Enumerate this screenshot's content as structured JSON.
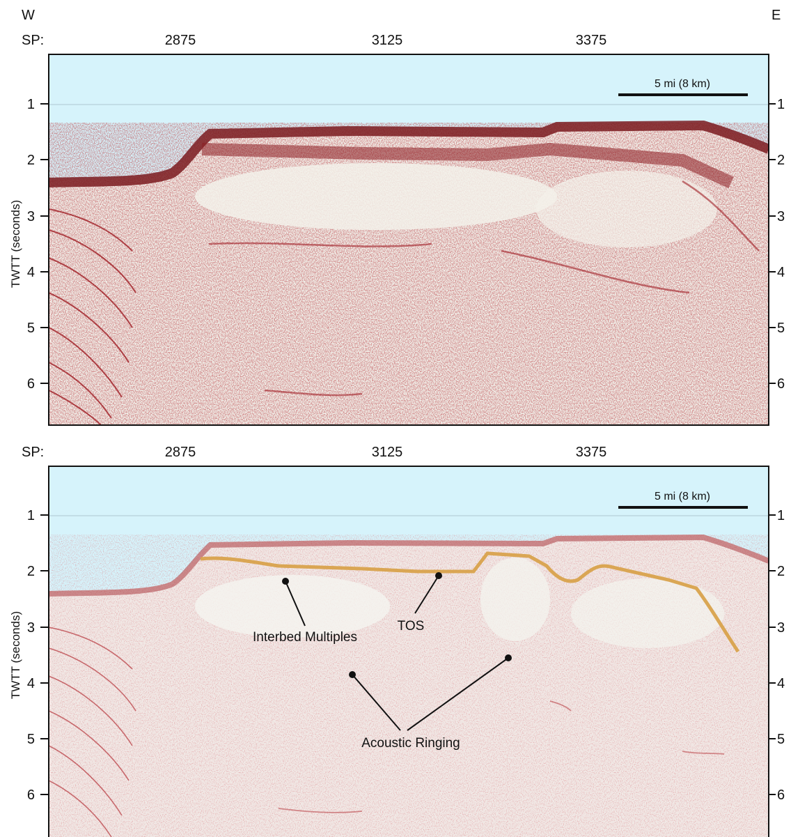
{
  "compass": {
    "west": "W",
    "east": "E"
  },
  "colors": {
    "water": "#d6f3fb",
    "noise_light": "#f1efe9",
    "reflector_red": "#c0212b",
    "reflector_dark": "#2a1010",
    "tos_horizon": "#d8a24c",
    "frame": "#111111"
  },
  "panels": [
    {
      "id": "top",
      "sp_label": "SP:",
      "sp_ticks": [
        "2875",
        "3125",
        "3375"
      ],
      "y_axis_label": "TWTT (seconds)",
      "y_ticks": [
        "1",
        "2",
        "3",
        "4",
        "5",
        "6"
      ],
      "scale_bar": "5 mi (8 km)",
      "annotations": []
    },
    {
      "id": "bottom",
      "sp_label": "SP:",
      "sp_ticks": [
        "2875",
        "3125",
        "3375"
      ],
      "y_axis_label": "TWTT (seconds)",
      "y_ticks": [
        "1",
        "2",
        "3",
        "4",
        "5",
        "6"
      ],
      "scale_bar": "5 mi (8 km)",
      "annotations": [
        "Interbed Multiples",
        "TOS",
        "Acoustic Ringing"
      ]
    }
  ]
}
